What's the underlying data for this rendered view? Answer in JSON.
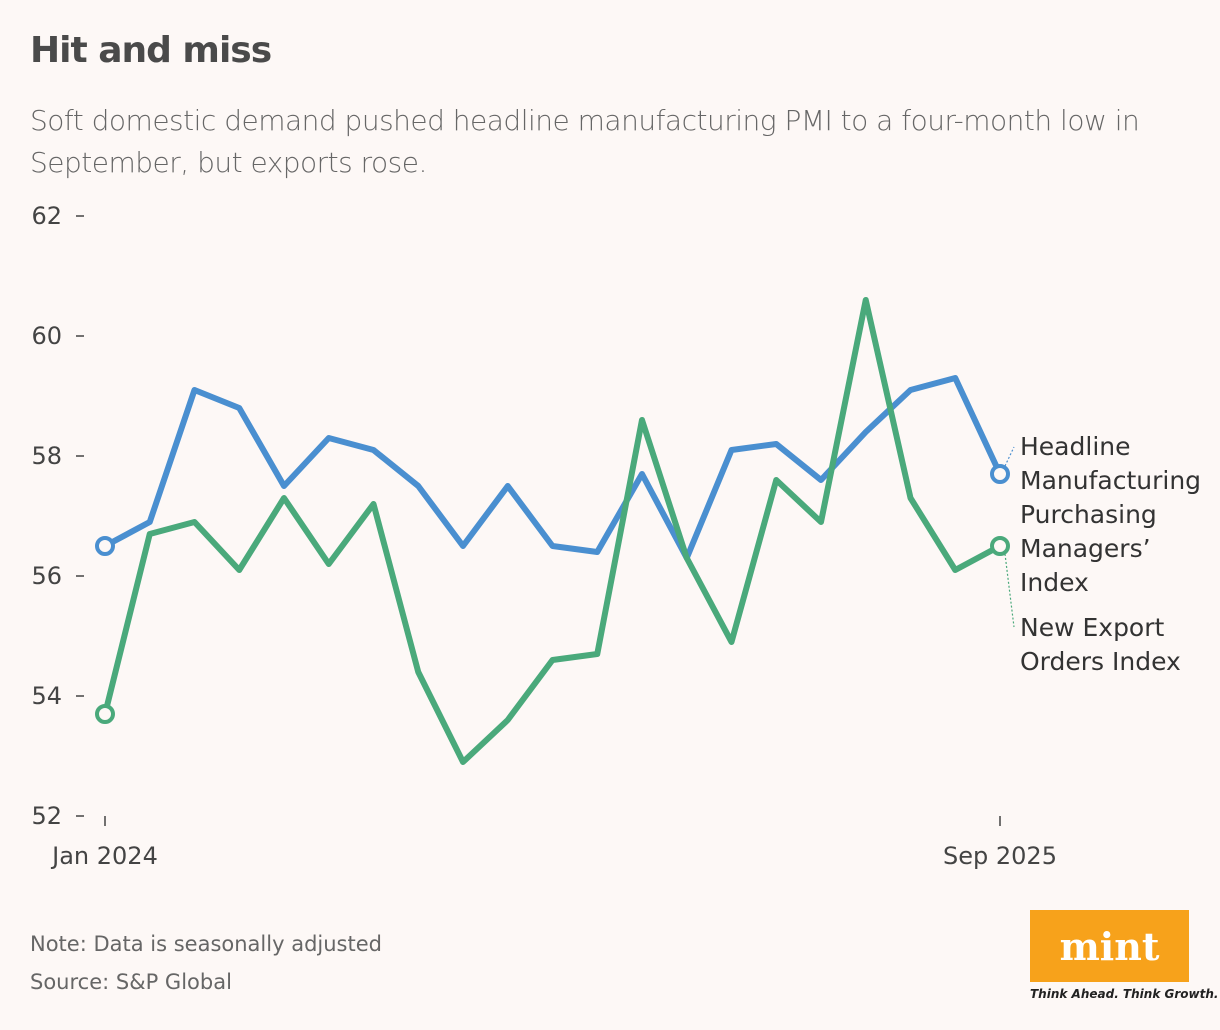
{
  "title": "Hit and miss",
  "subtitle": "Soft domestic demand pushed headline manufacturing PMI to a four-month low in September, but exports rose.",
  "note": "Note: Data is seasonally adjusted",
  "source": "Source: S&P Global",
  "logo": {
    "text": "mint",
    "tagline": "Think Ahead. Think Growth.",
    "color": "#f7a21b"
  },
  "chart_data": {
    "type": "line",
    "title": "Hit and miss",
    "x": [
      "Jan 2024",
      "Feb 2024",
      "Mar 2024",
      "Apr 2024",
      "May 2024",
      "Jun 2024",
      "Jul 2024",
      "Aug 2024",
      "Sep 2024",
      "Oct 2024",
      "Nov 2024",
      "Dec 2024",
      "Jan 2025",
      "Feb 2025",
      "Mar 2025",
      "Apr 2025",
      "May 2025",
      "Jun 2025",
      "Jul 2025",
      "Aug 2025",
      "Sep 2025"
    ],
    "x_tick_labels": [
      "Jan 2024",
      "Sep 2025"
    ],
    "y_ticks": [
      52,
      54,
      56,
      58,
      60,
      62
    ],
    "ylim": [
      52,
      62
    ],
    "grid": false,
    "legend": "direct labels at line ends",
    "series": [
      {
        "name": "Headline Manufacturing Purchasing Managers' Index",
        "color": "#4a8fd0",
        "values": [
          56.5,
          56.9,
          59.1,
          58.8,
          57.5,
          58.3,
          58.1,
          57.5,
          56.5,
          57.5,
          56.5,
          56.4,
          57.7,
          56.3,
          58.1,
          58.2,
          57.6,
          58.4,
          59.1,
          59.3,
          57.7
        ]
      },
      {
        "name": "New Export Orders Index",
        "color": "#4aa97b",
        "values": [
          53.7,
          56.7,
          56.9,
          56.1,
          57.3,
          56.2,
          57.2,
          54.4,
          52.9,
          53.6,
          54.6,
          54.7,
          58.6,
          56.3,
          54.9,
          57.6,
          56.9,
          60.6,
          57.3,
          56.1,
          56.5
        ]
      }
    ]
  }
}
